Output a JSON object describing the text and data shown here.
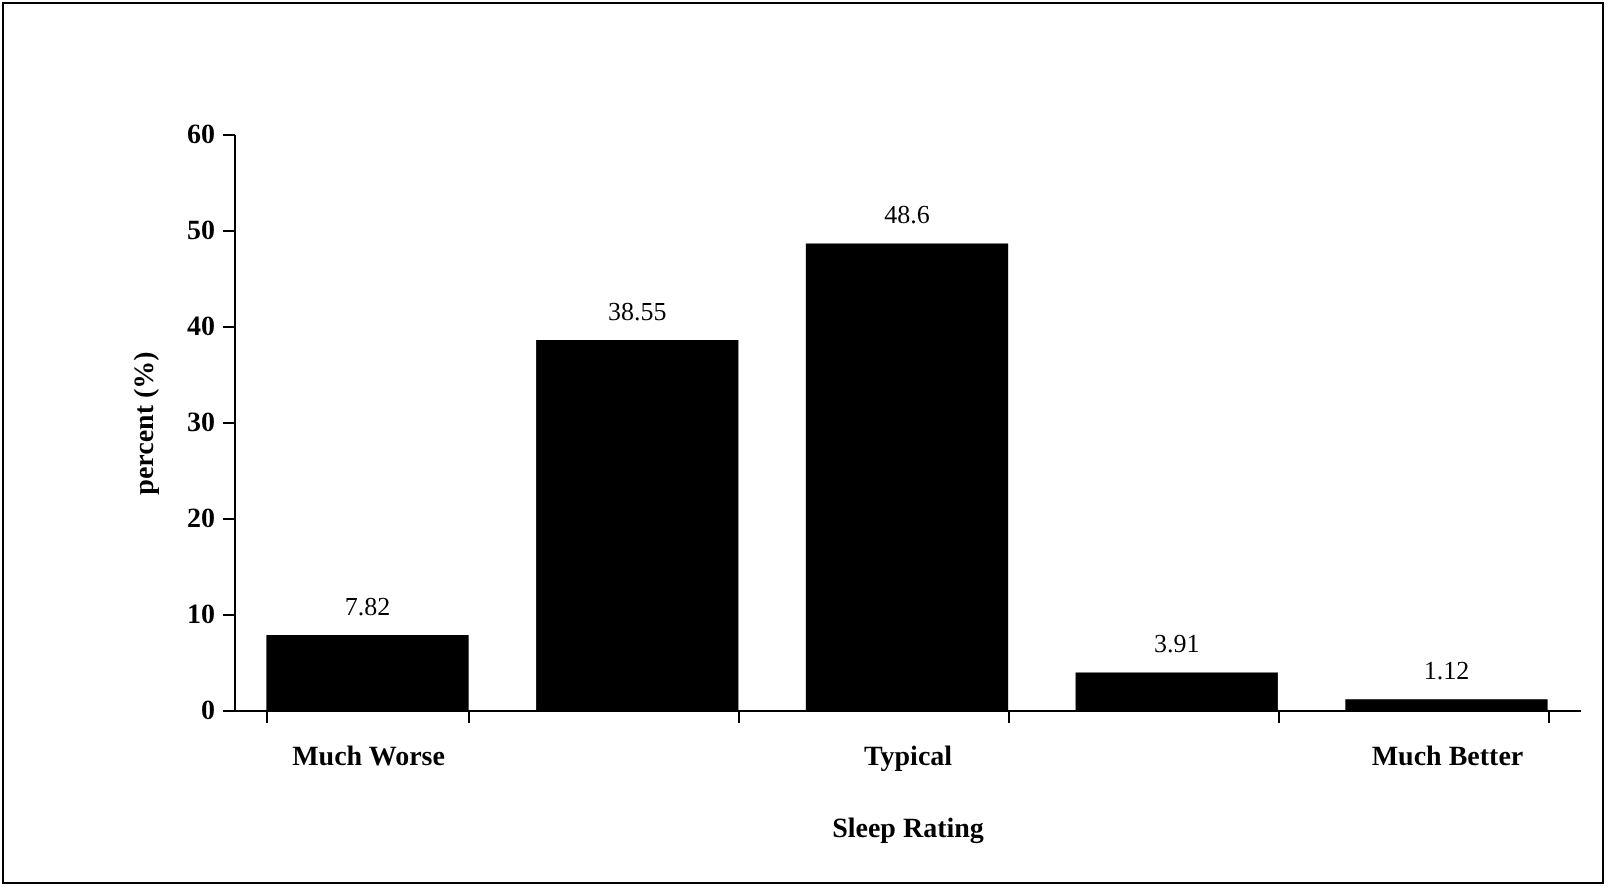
{
  "chart_data": {
    "type": "bar",
    "xlabel": "Sleep Rating",
    "ylabel": "percent (%)",
    "categories": [
      "Much Worse",
      null,
      "Typical",
      null,
      "Much Better"
    ],
    "values": [
      7.82,
      38.55,
      48.6,
      3.91,
      1.12
    ],
    "color": "#000000",
    "ylim": [
      0,
      60
    ],
    "yticks": [
      0,
      10,
      20,
      30,
      40,
      50,
      60
    ],
    "grid": false,
    "data_labels": true
  }
}
